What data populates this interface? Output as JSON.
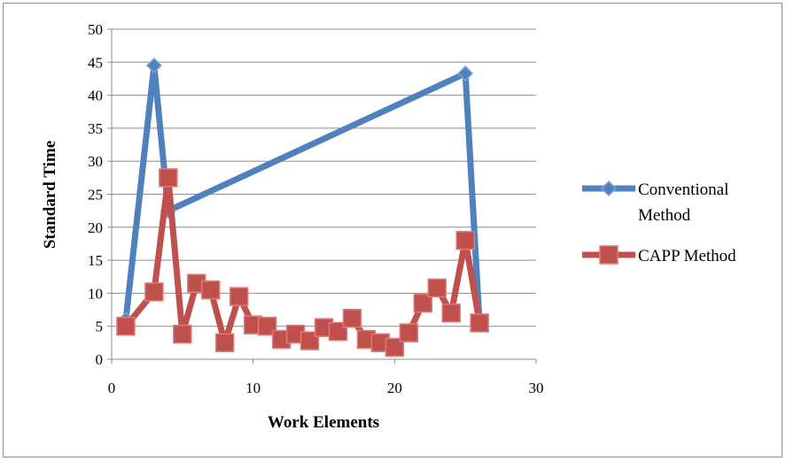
{
  "chart_data": {
    "type": "scatter",
    "xlabel": "Work Elements",
    "ylabel": "Standard  Time",
    "xlim": [
      0,
      30
    ],
    "ylim": [
      0,
      50
    ],
    "x_ticks": [
      0,
      10,
      20,
      30
    ],
    "y_ticks": [
      0,
      5,
      10,
      15,
      20,
      25,
      30,
      35,
      40,
      45,
      50
    ],
    "grid": "horizontal",
    "legend_position": "right",
    "series": [
      {
        "name": "Conventional Method",
        "legend_lines": [
          "Conventional",
          "Method"
        ],
        "color": "#4f81bd",
        "marker": "diamond",
        "x": [
          1,
          3,
          4,
          25,
          26
        ],
        "y": [
          6,
          44.5,
          22.5,
          43.3,
          5.5
        ]
      },
      {
        "name": "CAPP Method",
        "legend_lines": [
          "CAPP Method"
        ],
        "color": "#c0504d",
        "marker": "square",
        "x": [
          1,
          3,
          4,
          5,
          6,
          7,
          8,
          9,
          10,
          11,
          12,
          13,
          14,
          15,
          16,
          17,
          18,
          19,
          20,
          21,
          22,
          23,
          24,
          25,
          26
        ],
        "y": [
          5,
          10.2,
          27.5,
          3.8,
          11.5,
          10.5,
          2.5,
          9.5,
          5.2,
          5,
          3,
          3.8,
          2.8,
          4.8,
          4.2,
          6.2,
          3,
          2.5,
          1.8,
          4,
          8.5,
          10.8,
          7,
          18,
          5.5
        ]
      }
    ]
  }
}
